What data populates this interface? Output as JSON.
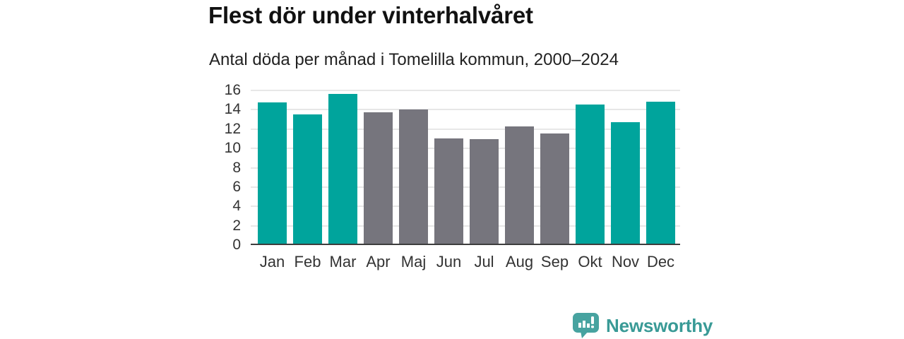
{
  "header": {
    "title": "Flest dör under vinterhalvåret",
    "subtitle": "Antal döda per månad i Tomelilla kommun, 2000–2024"
  },
  "chart_data": {
    "type": "bar",
    "title": "Flest dör under vinterhalvåret",
    "subtitle": "Antal döda per månad i Tomelilla kommun, 2000–2024",
    "categories": [
      "Jan",
      "Feb",
      "Mar",
      "Apr",
      "Maj",
      "Jun",
      "Jul",
      "Aug",
      "Sep",
      "Okt",
      "Nov",
      "Dec"
    ],
    "values": [
      14.6,
      13.4,
      15.5,
      13.6,
      13.9,
      10.9,
      10.8,
      12.1,
      11.4,
      14.4,
      12.6,
      14.7
    ],
    "seasons": [
      "winter",
      "winter",
      "winter",
      "summer",
      "summer",
      "summer",
      "summer",
      "summer",
      "summer",
      "winter",
      "winter",
      "winter"
    ],
    "xlabel": "",
    "ylabel": "",
    "ylim": [
      0,
      16
    ],
    "yticks": [
      0,
      2,
      4,
      6,
      8,
      10,
      12,
      14,
      16
    ],
    "grid": true,
    "legend": "none",
    "colors": {
      "winter": "#00a49c",
      "summer": "#76757d",
      "gridline": "#e7e7e7",
      "axis_line": "#3d3d3d",
      "tick_text": "#333333"
    }
  },
  "branding": {
    "logo_text": "Newsworthy",
    "logo_icon": "bar-chart-speech-bubble-icon",
    "logo_color": "#399a96",
    "logo_icon_color": "#47a3a0"
  }
}
